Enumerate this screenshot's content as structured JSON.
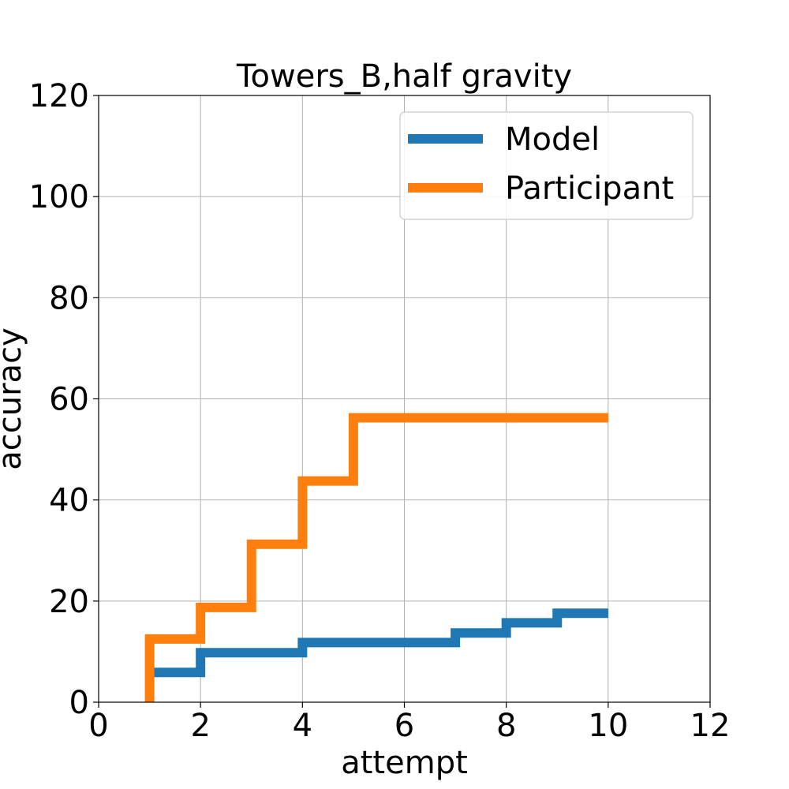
{
  "chart_data": {
    "type": "line",
    "title": "Towers_B,half gravity",
    "xlabel": "attempt",
    "ylabel": "accuracy",
    "xlim": [
      0,
      12
    ],
    "ylim": [
      0,
      120
    ],
    "xticks": [
      "0",
      "2",
      "4",
      "6",
      "8",
      "10",
      "12"
    ],
    "yticks": [
      "0",
      "20",
      "40",
      "60",
      "80",
      "100",
      "120"
    ],
    "grid": true,
    "legend_position": "top-right",
    "step": "post",
    "series": [
      {
        "name": "Model",
        "color": "#1f77b4",
        "x": [
          1,
          2,
          3,
          4,
          5,
          6,
          7,
          8,
          9,
          10
        ],
        "y": [
          5.9,
          9.8,
          9.8,
          11.8,
          11.8,
          11.8,
          13.7,
          15.7,
          17.6,
          17.6
        ]
      },
      {
        "name": "Participant",
        "color": "#ff7f0e",
        "x": [
          1,
          1,
          2,
          3,
          4,
          5,
          6,
          7,
          8,
          9,
          10
        ],
        "y": [
          0,
          12.5,
          18.75,
          31.25,
          43.75,
          56.25,
          56.25,
          56.25,
          56.25,
          56.25,
          56.25
        ]
      }
    ]
  }
}
